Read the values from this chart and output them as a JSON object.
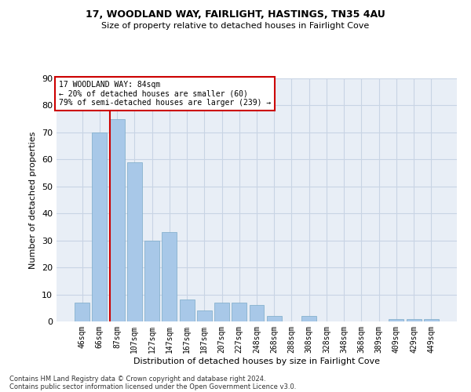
{
  "title1": "17, WOODLAND WAY, FAIRLIGHT, HASTINGS, TN35 4AU",
  "title2": "Size of property relative to detached houses in Fairlight Cove",
  "xlabel": "Distribution of detached houses by size in Fairlight Cove",
  "ylabel": "Number of detached properties",
  "categories": [
    "46sqm",
    "66sqm",
    "87sqm",
    "107sqm",
    "127sqm",
    "147sqm",
    "167sqm",
    "187sqm",
    "207sqm",
    "227sqm",
    "248sqm",
    "268sqm",
    "288sqm",
    "308sqm",
    "328sqm",
    "348sqm",
    "368sqm",
    "389sqm",
    "409sqm",
    "429sqm",
    "449sqm"
  ],
  "values": [
    7,
    70,
    75,
    59,
    30,
    33,
    8,
    4,
    7,
    7,
    6,
    2,
    0,
    2,
    0,
    0,
    0,
    0,
    1,
    1,
    1
  ],
  "bar_color": "#a8c8e8",
  "bar_edge_color": "#7aaac8",
  "marker_line_color": "#cc0000",
  "annotation_line1": "17 WOODLAND WAY: 84sqm",
  "annotation_line2": "← 20% of detached houses are smaller (60)",
  "annotation_line3": "79% of semi-detached houses are larger (239) →",
  "annotation_box_color": "#ffffff",
  "annotation_box_edge": "#cc0000",
  "grid_color": "#c8d4e4",
  "background_color": "#e8eef6",
  "ylim": [
    0,
    90
  ],
  "yticks": [
    0,
    10,
    20,
    30,
    40,
    50,
    60,
    70,
    80,
    90
  ],
  "footnote1": "Contains HM Land Registry data © Crown copyright and database right 2024.",
  "footnote2": "Contains public sector information licensed under the Open Government Licence v3.0."
}
